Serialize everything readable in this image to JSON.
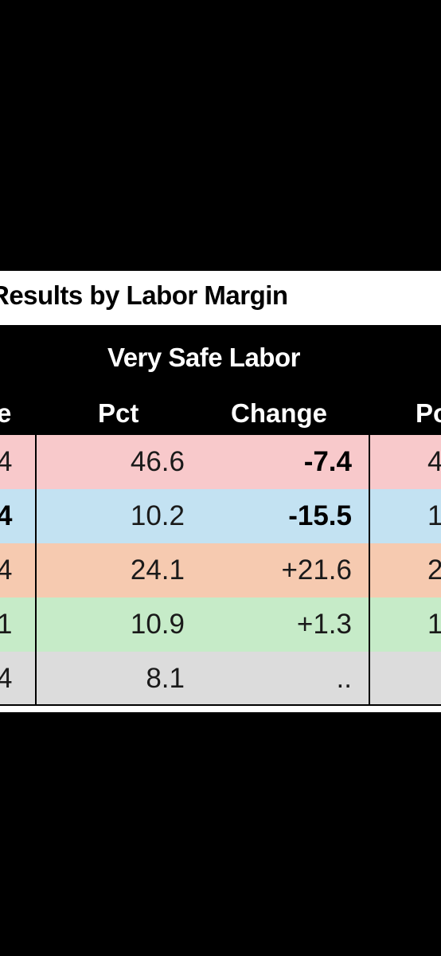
{
  "title": "Results by Labor Margin",
  "group_title": "Very Safe Labor",
  "columns": {
    "left_partial": "e",
    "pct": "Pct",
    "change": "Change",
    "right_partial": "Po"
  },
  "colors": {
    "row_pink": "#f8c9cb",
    "row_blue": "#c3e2f2",
    "row_orange": "#f6cab0",
    "row_green": "#c6ebc8",
    "row_grey": "#dcdcdc"
  },
  "rows": [
    {
      "left": "4",
      "pct": "46.6",
      "change": "-7.4",
      "right": "4",
      "left_bold": false,
      "change_bold": true
    },
    {
      "left": "4",
      "pct": "10.2",
      "change": "-15.5",
      "right": "1",
      "left_bold": true,
      "change_bold": true
    },
    {
      "left": "4",
      "pct": "24.1",
      "change": "+21.6",
      "right": "2",
      "left_bold": false,
      "change_bold": false
    },
    {
      "left": "1",
      "pct": "10.9",
      "change": "+1.3",
      "right": "1",
      "left_bold": false,
      "change_bold": false
    },
    {
      "left": "4",
      "pct": "8.1",
      "change": "..",
      "right": "",
      "left_bold": false,
      "change_bold": false
    }
  ]
}
